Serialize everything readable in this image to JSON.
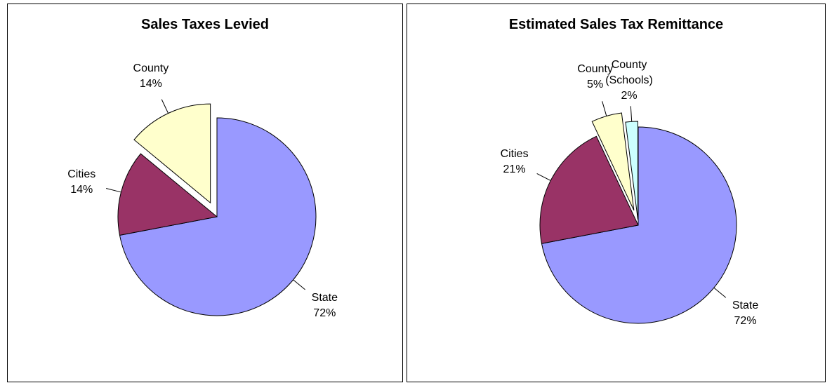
{
  "chart_data": [
    {
      "type": "pie",
      "title": "Sales Taxes Levied",
      "categories": [
        "State",
        "Cities",
        "County"
      ],
      "values": [
        72,
        14,
        14
      ],
      "value_labels": [
        "72%",
        "14%",
        "14%"
      ],
      "colors": [
        "#9999ff",
        "#993366",
        "#ffffcc"
      ]
    },
    {
      "type": "pie",
      "title": "Estimated Sales Tax Remittance",
      "categories": [
        "State",
        "Cities",
        "County",
        "County (Schools)"
      ],
      "values": [
        72,
        21,
        5,
        2
      ],
      "value_labels": [
        "72%",
        "21%",
        "5%",
        "2%"
      ],
      "colors": [
        "#9999ff",
        "#993366",
        "#ffffcc",
        "#ccffff"
      ]
    }
  ]
}
